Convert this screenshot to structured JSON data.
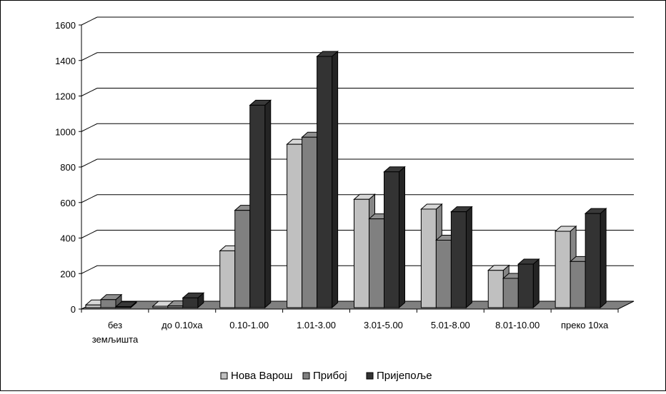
{
  "chart_data": {
    "type": "bar",
    "categories": [
      [
        "без",
        "земљишта"
      ],
      [
        "до 0.10ха"
      ],
      [
        "0.10-1.00"
      ],
      [
        "1.01-3.00"
      ],
      [
        "3.01-5.00"
      ],
      [
        "5.01-8.00"
      ],
      [
        "8.01-10.00"
      ],
      [
        "преко 10ха"
      ]
    ],
    "series": [
      {
        "name": "Нова Варош",
        "color": "#c0c0c0",
        "values": [
          15,
          8,
          320,
          920,
          610,
          555,
          210,
          430
        ]
      },
      {
        "name": "Прибој",
        "color": "#808080",
        "values": [
          45,
          10,
          548,
          960,
          500,
          380,
          165,
          260
        ]
      },
      {
        "name": "Пријепоље",
        "color": "#333333",
        "values": [
          5,
          55,
          1140,
          1415,
          765,
          540,
          245,
          530
        ]
      }
    ],
    "ylim": [
      0,
      1600
    ],
    "yticks": [
      "0",
      "200",
      "400",
      "600",
      "800",
      "1000",
      "1200",
      "1400",
      "1600"
    ],
    "grid": true,
    "legend_position": "bottom"
  }
}
